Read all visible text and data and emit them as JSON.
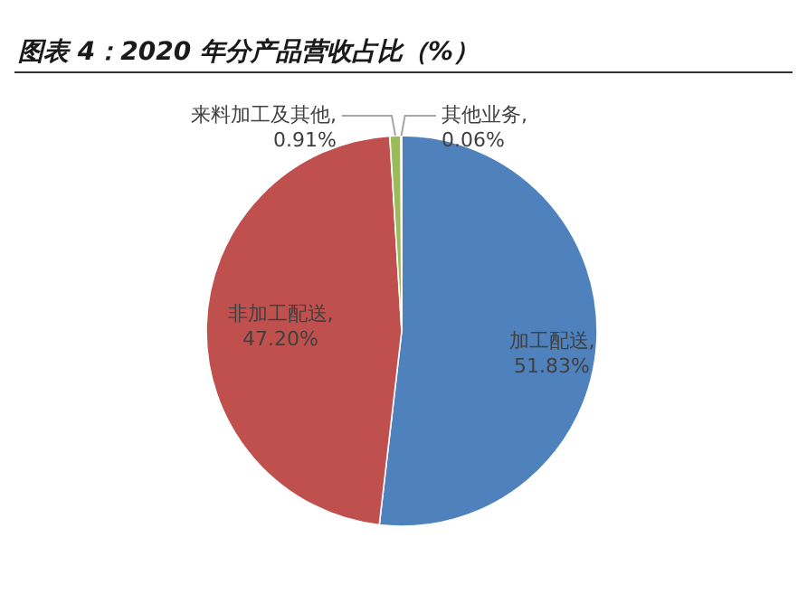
{
  "chart_data": {
    "type": "pie",
    "title": "图表 4：2020 年分产品营收占比（%）",
    "categories": [
      "加工配送",
      "非加工配送",
      "来料加工及其他",
      "其他业务"
    ],
    "values": [
      51.83,
      47.2,
      0.91,
      0.06
    ],
    "value_labels": [
      ", 51.83%",
      ", 47.20%",
      ", 0.91%",
      ", 0.06%"
    ],
    "colors": [
      "#4f81bd",
      "#c0504d",
      "#9bbb59",
      "#8064a2"
    ],
    "legend": false
  }
}
